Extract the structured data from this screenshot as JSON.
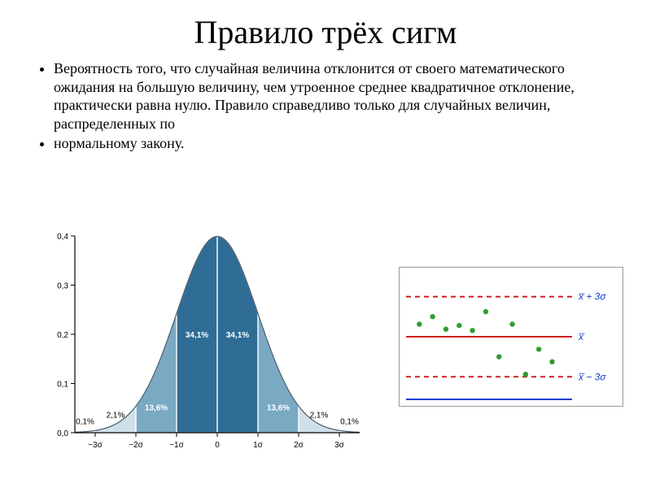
{
  "title": "Правило трёх сигм",
  "bullets": [
    "Вероятность того, что случайная величина отклонится от своего математического ожидания на большую величину, чем утроенное среднее квадратичное отклонение, практически равна нулю. Правило справедливо только для случайных величин, распределенных по",
    " нормальному закону."
  ],
  "bell_chart": {
    "type": "area",
    "ylim": [
      0.0,
      0.4
    ],
    "yticks": [
      0.0,
      0.1,
      0.2,
      0.3,
      0.4
    ],
    "ytick_labels": [
      "0,0",
      "0,1",
      "0,2",
      "0,3",
      "0,4"
    ],
    "xticks": [
      -3,
      -2,
      -1,
      0,
      1,
      2,
      3
    ],
    "xtick_labels": [
      "−3σ",
      "−2σ",
      "−1σ",
      "0",
      "1σ",
      "2σ",
      "3σ"
    ],
    "segments": [
      {
        "from": -3,
        "to": -2,
        "pct": "2,1%",
        "fill": "#cfe0ea",
        "label_inside": false
      },
      {
        "from": -2,
        "to": -1,
        "pct": "13,6%",
        "fill": "#7aa9c4",
        "label_inside": true
      },
      {
        "from": -1,
        "to": 0,
        "pct": "34,1%",
        "fill": "#2f6d96",
        "label_inside": true
      },
      {
        "from": 0,
        "to": 1,
        "pct": "34,1%",
        "fill": "#2f6d96",
        "label_inside": true
      },
      {
        "from": 1,
        "to": 2,
        "pct": "13,6%",
        "fill": "#7aa9c4",
        "label_inside": true
      },
      {
        "from": 2,
        "to": 3,
        "pct": "2,1%",
        "fill": "#cfe0ea",
        "label_inside": false
      }
    ],
    "tail_labels": {
      "left": "0,1%",
      "right": "0,1%"
    },
    "axis_color": "#000000",
    "segment_border": "#ffffff",
    "grid_color": "#000000",
    "background_color": "#ffffff",
    "label_fontsize": 10,
    "pct_inside_color": "#ffffff",
    "pct_outside_color": "#000000"
  },
  "control_chart": {
    "type": "scatter",
    "line_labels": {
      "upper": "x̅ + 3σ",
      "center": "x̅",
      "lower": "x̅ − 3σ"
    },
    "label_color": "#1040d0",
    "label_fontsize": 12,
    "center_line": {
      "y": 0.5,
      "color": "#d02020",
      "dash": "none",
      "width": 2
    },
    "limit_lines": [
      {
        "y": 0.18,
        "color": "#d02020",
        "dash": "6,5",
        "width": 2
      },
      {
        "y": 0.82,
        "color": "#d02020",
        "dash": "6,5",
        "width": 2
      }
    ],
    "baseline": {
      "y": 1.0,
      "color": "#1040d0",
      "width": 2
    },
    "points": [
      {
        "x": 0.08,
        "y": 0.4
      },
      {
        "x": 0.16,
        "y": 0.34
      },
      {
        "x": 0.24,
        "y": 0.44
      },
      {
        "x": 0.32,
        "y": 0.41
      },
      {
        "x": 0.4,
        "y": 0.45
      },
      {
        "x": 0.48,
        "y": 0.3
      },
      {
        "x": 0.56,
        "y": 0.66
      },
      {
        "x": 0.64,
        "y": 0.4
      },
      {
        "x": 0.72,
        "y": 0.8
      },
      {
        "x": 0.8,
        "y": 0.6
      },
      {
        "x": 0.88,
        "y": 0.7
      }
    ],
    "point_color": "#2e9e2e",
    "point_radius": 3.2,
    "background_color": "#ffffff"
  }
}
